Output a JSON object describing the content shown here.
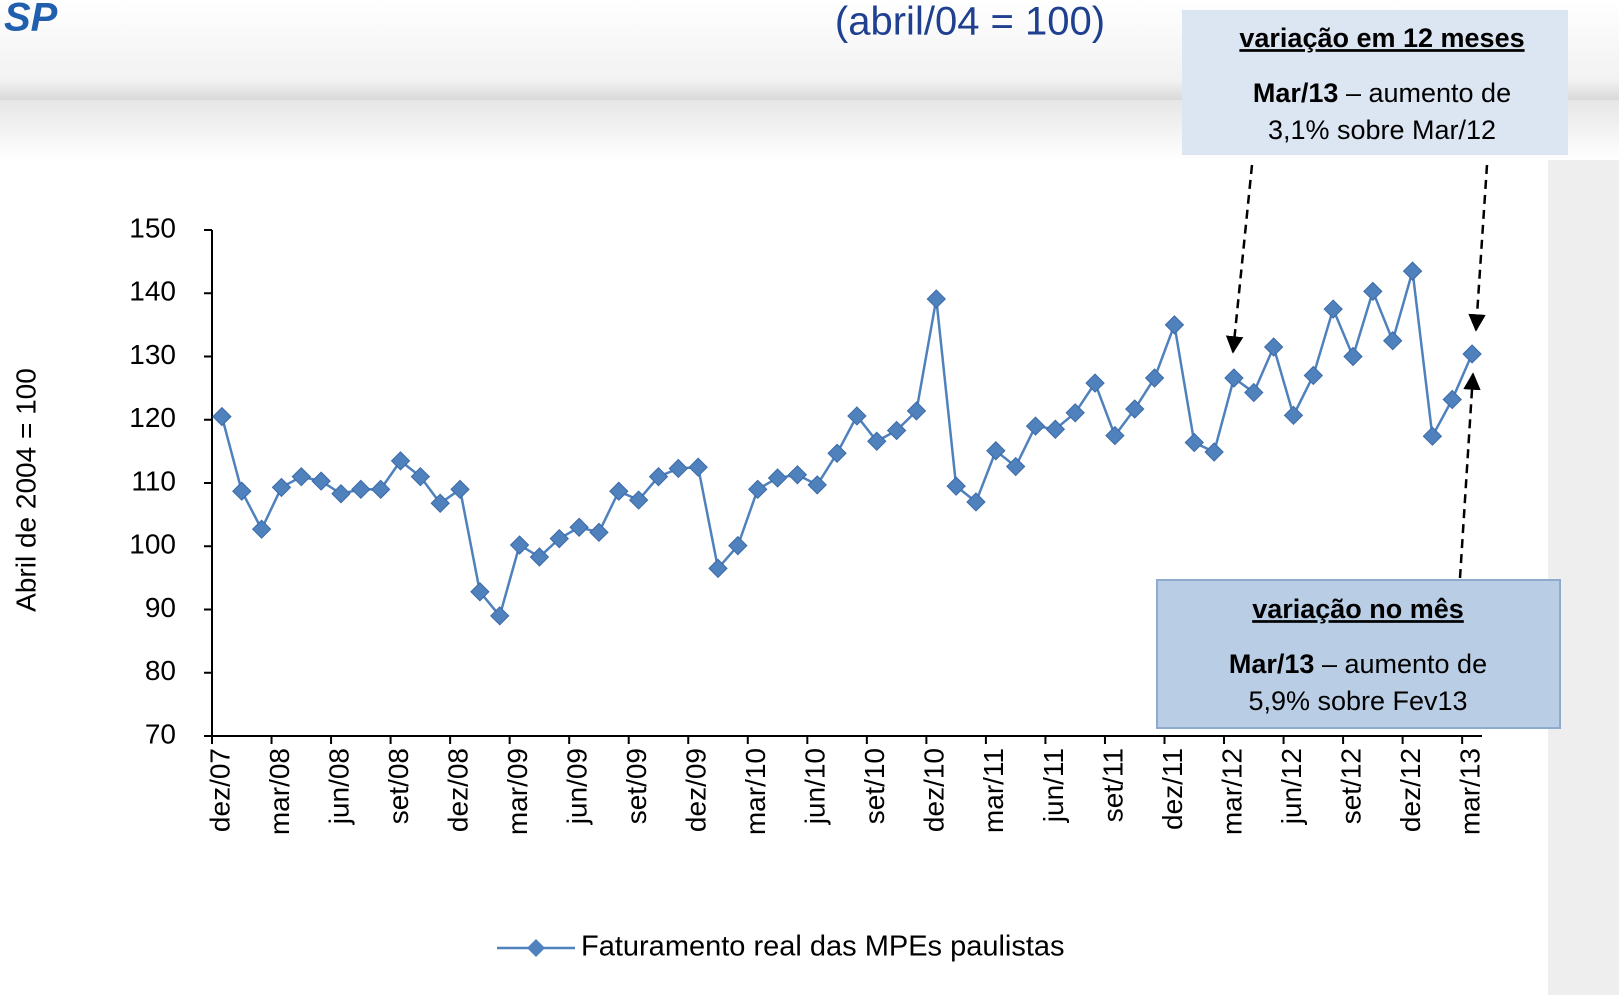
{
  "logo": "SP",
  "chart_data": {
    "type": "line",
    "subtitle": "(abril/04 = 100)",
    "y_label": "Abril de 2004 = 100",
    "categories": [
      "dez/07",
      null,
      null,
      "mar/08",
      null,
      null,
      "jun/08",
      null,
      null,
      "set/08",
      null,
      null,
      "dez/08",
      null,
      null,
      "mar/09",
      null,
      null,
      "jun/09",
      null,
      null,
      "set/09",
      null,
      null,
      "dez/09",
      null,
      null,
      "mar/10",
      null,
      null,
      "jun/10",
      null,
      null,
      "set/10",
      null,
      null,
      "dez/10",
      null,
      null,
      "mar/11",
      null,
      null,
      "jun/11",
      null,
      null,
      "set/11",
      null,
      null,
      "dez/11",
      null,
      null,
      "mar/12",
      null,
      null,
      "jun/12",
      null,
      null,
      "set/12",
      null,
      null,
      "dez/12",
      null,
      null,
      "mar/13"
    ],
    "series": [
      {
        "name": "Faturamento real das MPEs paulistas",
        "color": "#4f81bd",
        "values": [
          120.5,
          108.7,
          102.7,
          109.3,
          111,
          110.3,
          108.3,
          109,
          109,
          113.5,
          111,
          106.8,
          109,
          92.8,
          89,
          100.2,
          98.3,
          101.2,
          103,
          102.2,
          108.7,
          107.3,
          111,
          112.3,
          112.5,
          96.5,
          100.1,
          109,
          110.8,
          111.3,
          109.7,
          114.7,
          120.6,
          116.6,
          118.3,
          121.4,
          139.1,
          109.5,
          107,
          115.1,
          112.6,
          119,
          118.5,
          121.1,
          125.8,
          117.5,
          121.7,
          126.6,
          135,
          116.4,
          114.9,
          126.6,
          124.3,
          131.5,
          120.7,
          127,
          137.5,
          130,
          140.3,
          132.5,
          143.5,
          117.4,
          123.2,
          130.4
        ]
      }
    ],
    "ylim": [
      70,
      150
    ],
    "yticks": [
      70,
      80,
      90,
      100,
      110,
      120,
      130,
      140,
      150
    ],
    "annotations": [
      {
        "title": "variação em 12 meses",
        "lead": "Mar/13",
        "text_1": "– aumento de",
        "text_2": "3,1% sobre Mar/12"
      },
      {
        "title": "variação no mês",
        "lead": "Mar/13",
        "text_1": "– aumento de",
        "text_2": "5,9% sobre Fev13"
      }
    ]
  }
}
